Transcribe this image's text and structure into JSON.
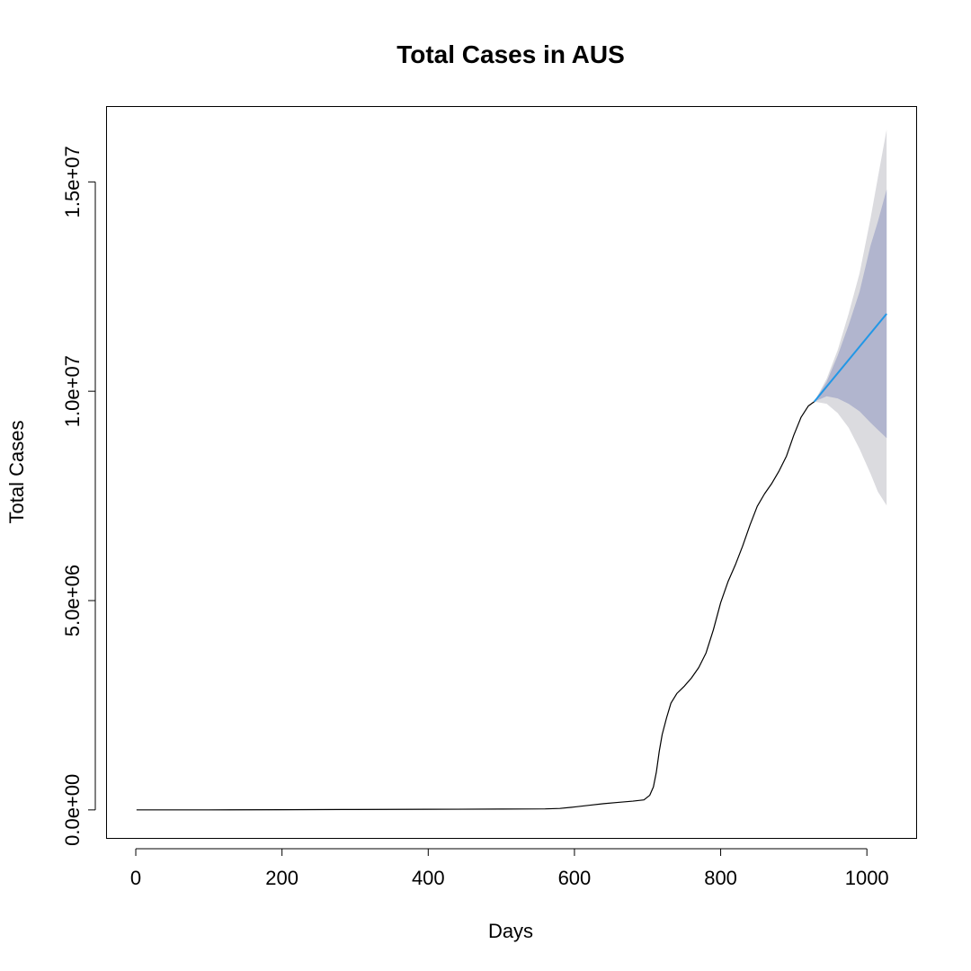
{
  "chart_data": {
    "type": "line",
    "title": "Total Cases in AUS",
    "xlabel": "Days",
    "ylabel": "Total Cases",
    "xlim": [
      -40,
      1068
    ],
    "ylim": [
      -680000,
      16800000
    ],
    "x_ticks": [
      0,
      200,
      400,
      600,
      800,
      1000
    ],
    "x_tick_labels": [
      "0",
      "200",
      "400",
      "600",
      "800",
      "1000"
    ],
    "y_ticks": [
      0,
      5000000,
      10000000,
      15000000
    ],
    "y_tick_labels": [
      "0.0e+00",
      "5.0e+06",
      "1.0e+07",
      "1.5e+07"
    ],
    "grid": false,
    "series": [
      {
        "role": "observed",
        "color": "#000000",
        "points": [
          [
            1,
            0
          ],
          [
            100,
            0
          ],
          [
            200,
            5000
          ],
          [
            300,
            10000
          ],
          [
            400,
            15000
          ],
          [
            500,
            20000
          ],
          [
            560,
            25000
          ],
          [
            580,
            35000
          ],
          [
            600,
            70000
          ],
          [
            620,
            110000
          ],
          [
            640,
            150000
          ],
          [
            660,
            180000
          ],
          [
            680,
            210000
          ],
          [
            695,
            240000
          ],
          [
            703,
            350000
          ],
          [
            708,
            550000
          ],
          [
            712,
            900000
          ],
          [
            716,
            1400000
          ],
          [
            720,
            1800000
          ],
          [
            726,
            2200000
          ],
          [
            732,
            2550000
          ],
          [
            740,
            2780000
          ],
          [
            750,
            2950000
          ],
          [
            760,
            3150000
          ],
          [
            770,
            3400000
          ],
          [
            780,
            3750000
          ],
          [
            790,
            4300000
          ],
          [
            800,
            4950000
          ],
          [
            810,
            5450000
          ],
          [
            820,
            5850000
          ],
          [
            830,
            6300000
          ],
          [
            840,
            6800000
          ],
          [
            850,
            7250000
          ],
          [
            860,
            7550000
          ],
          [
            870,
            7800000
          ],
          [
            880,
            8100000
          ],
          [
            890,
            8450000
          ],
          [
            900,
            8950000
          ],
          [
            910,
            9380000
          ],
          [
            920,
            9650000
          ],
          [
            928,
            9750000
          ]
        ]
      },
      {
        "role": "forecast",
        "color": "#2297E6",
        "points": [
          [
            928,
            9750000
          ],
          [
            1027,
            11850000
          ]
        ]
      }
    ],
    "forecast_bands": [
      {
        "level": "95%",
        "color": "#DBDBDF",
        "x": [
          928,
          945,
          960,
          975,
          990,
          1005,
          1015,
          1027
        ],
        "lower": [
          9750000,
          9700000,
          9480000,
          9130000,
          8620000,
          8030000,
          7600000,
          7270000
        ],
        "upper": [
          9750000,
          10300000,
          10980000,
          11850000,
          12820000,
          14130000,
          15100000,
          16250000
        ]
      },
      {
        "level": "80%",
        "color": "#B1B5CE",
        "x": [
          928,
          945,
          960,
          975,
          990,
          1005,
          1015,
          1027
        ],
        "lower": [
          9750000,
          9880000,
          9830000,
          9700000,
          9520000,
          9250000,
          9080000,
          8880000
        ],
        "upper": [
          9750000,
          10230000,
          10850000,
          11580000,
          12380000,
          13480000,
          14050000,
          14820000
        ]
      }
    ]
  }
}
